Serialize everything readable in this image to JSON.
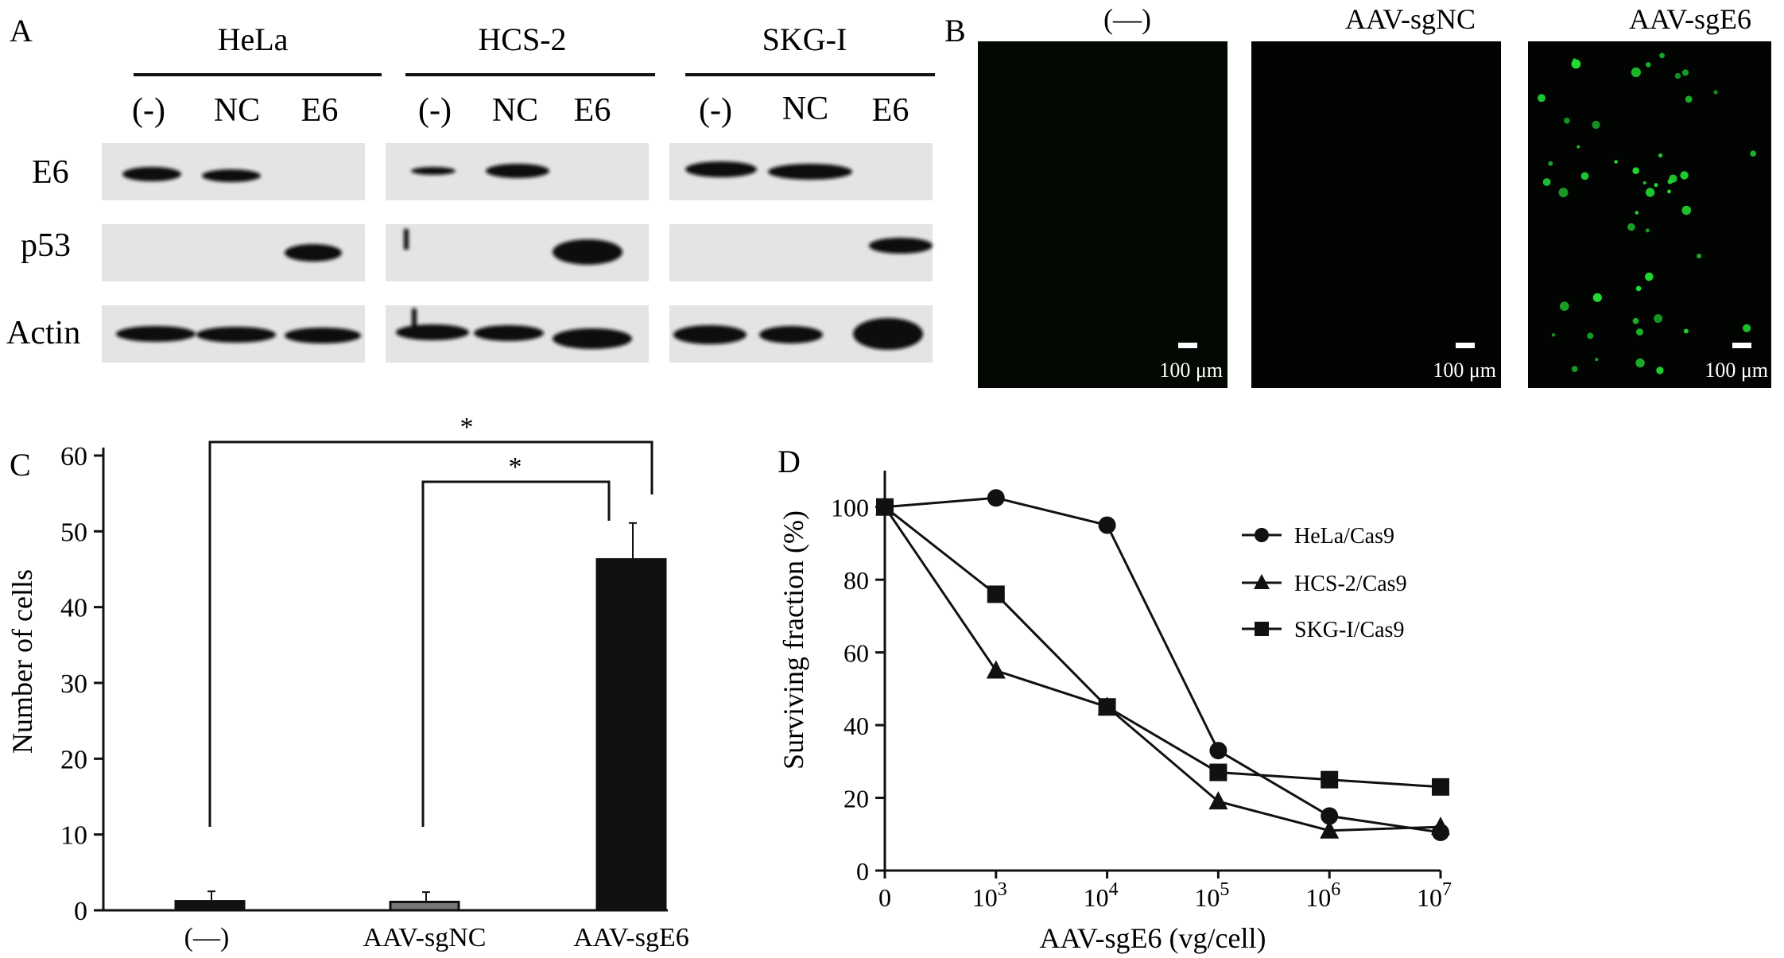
{
  "panels": {
    "A": {
      "letter": "A",
      "groups": [
        {
          "name": "HeLa",
          "lanes": [
            "(-)",
            "NC",
            "E6"
          ]
        },
        {
          "name": "HCS-2",
          "lanes": [
            "(-)",
            "NC",
            "E6"
          ]
        },
        {
          "name": "SKG-I",
          "lanes": [
            "(-)",
            "NC",
            "E6"
          ]
        }
      ],
      "rows": [
        "E6",
        "p53",
        "Actin"
      ]
    },
    "B": {
      "letter": "B",
      "images": [
        {
          "title": "(—)",
          "scale": "100 μm"
        },
        {
          "title": "AAV-sgNC",
          "scale": "100 μm"
        },
        {
          "title": "AAV-sgE6",
          "scale": "100 μm"
        }
      ],
      "fluorescence_color": "#22dd33"
    },
    "C": {
      "letter": "C"
    },
    "D": {
      "letter": "D"
    }
  },
  "chart_data": [
    {
      "type": "bar",
      "panel": "C",
      "categories": [
        "(—)",
        "AAV-sgNC",
        "AAV-sgE6"
      ],
      "values": [
        1.2,
        1.1,
        46.3
      ],
      "errors": [
        1.3,
        1.3,
        4.8
      ],
      "bar_colors": [
        "#111111",
        "#777777",
        "#111111"
      ],
      "ylabel": "Number of cells",
      "ylim": [
        0,
        60
      ],
      "yticks": [
        0,
        10,
        20,
        30,
        40,
        50,
        60
      ],
      "significance": [
        {
          "from": 0,
          "to": 2,
          "label": "*"
        },
        {
          "from": 1,
          "to": 2,
          "label": "*"
        }
      ]
    },
    {
      "type": "line",
      "panel": "D",
      "x": [
        "0",
        "10^3",
        "10^4",
        "10^5",
        "10^6",
        "10^7"
      ],
      "xtick_labels": [
        {
          "base": "0",
          "exp": ""
        },
        {
          "base": "10",
          "exp": "3"
        },
        {
          "base": "10",
          "exp": "4"
        },
        {
          "base": "10",
          "exp": "5"
        },
        {
          "base": "10",
          "exp": "6"
        },
        {
          "base": "10",
          "exp": "7"
        }
      ],
      "xlabel": "AAV-sgE6 (vg/cell)",
      "ylabel": "Surviving fraction (%)",
      "ylim": [
        0,
        110
      ],
      "yticks": [
        0,
        20,
        40,
        60,
        80,
        100
      ],
      "legend_position": "right",
      "series": [
        {
          "name": "HeLa/Cas9",
          "marker": "circle",
          "values": [
            100,
            102.5,
            95,
            33,
            15,
            10.5
          ]
        },
        {
          "name": "HCS-2/Cas9",
          "marker": "triangle",
          "values": [
            100,
            55,
            45,
            19,
            11,
            12
          ]
        },
        {
          "name": "SKG-I/Cas9",
          "marker": "square",
          "values": [
            100,
            76,
            45,
            27,
            25,
            23
          ]
        }
      ]
    }
  ]
}
